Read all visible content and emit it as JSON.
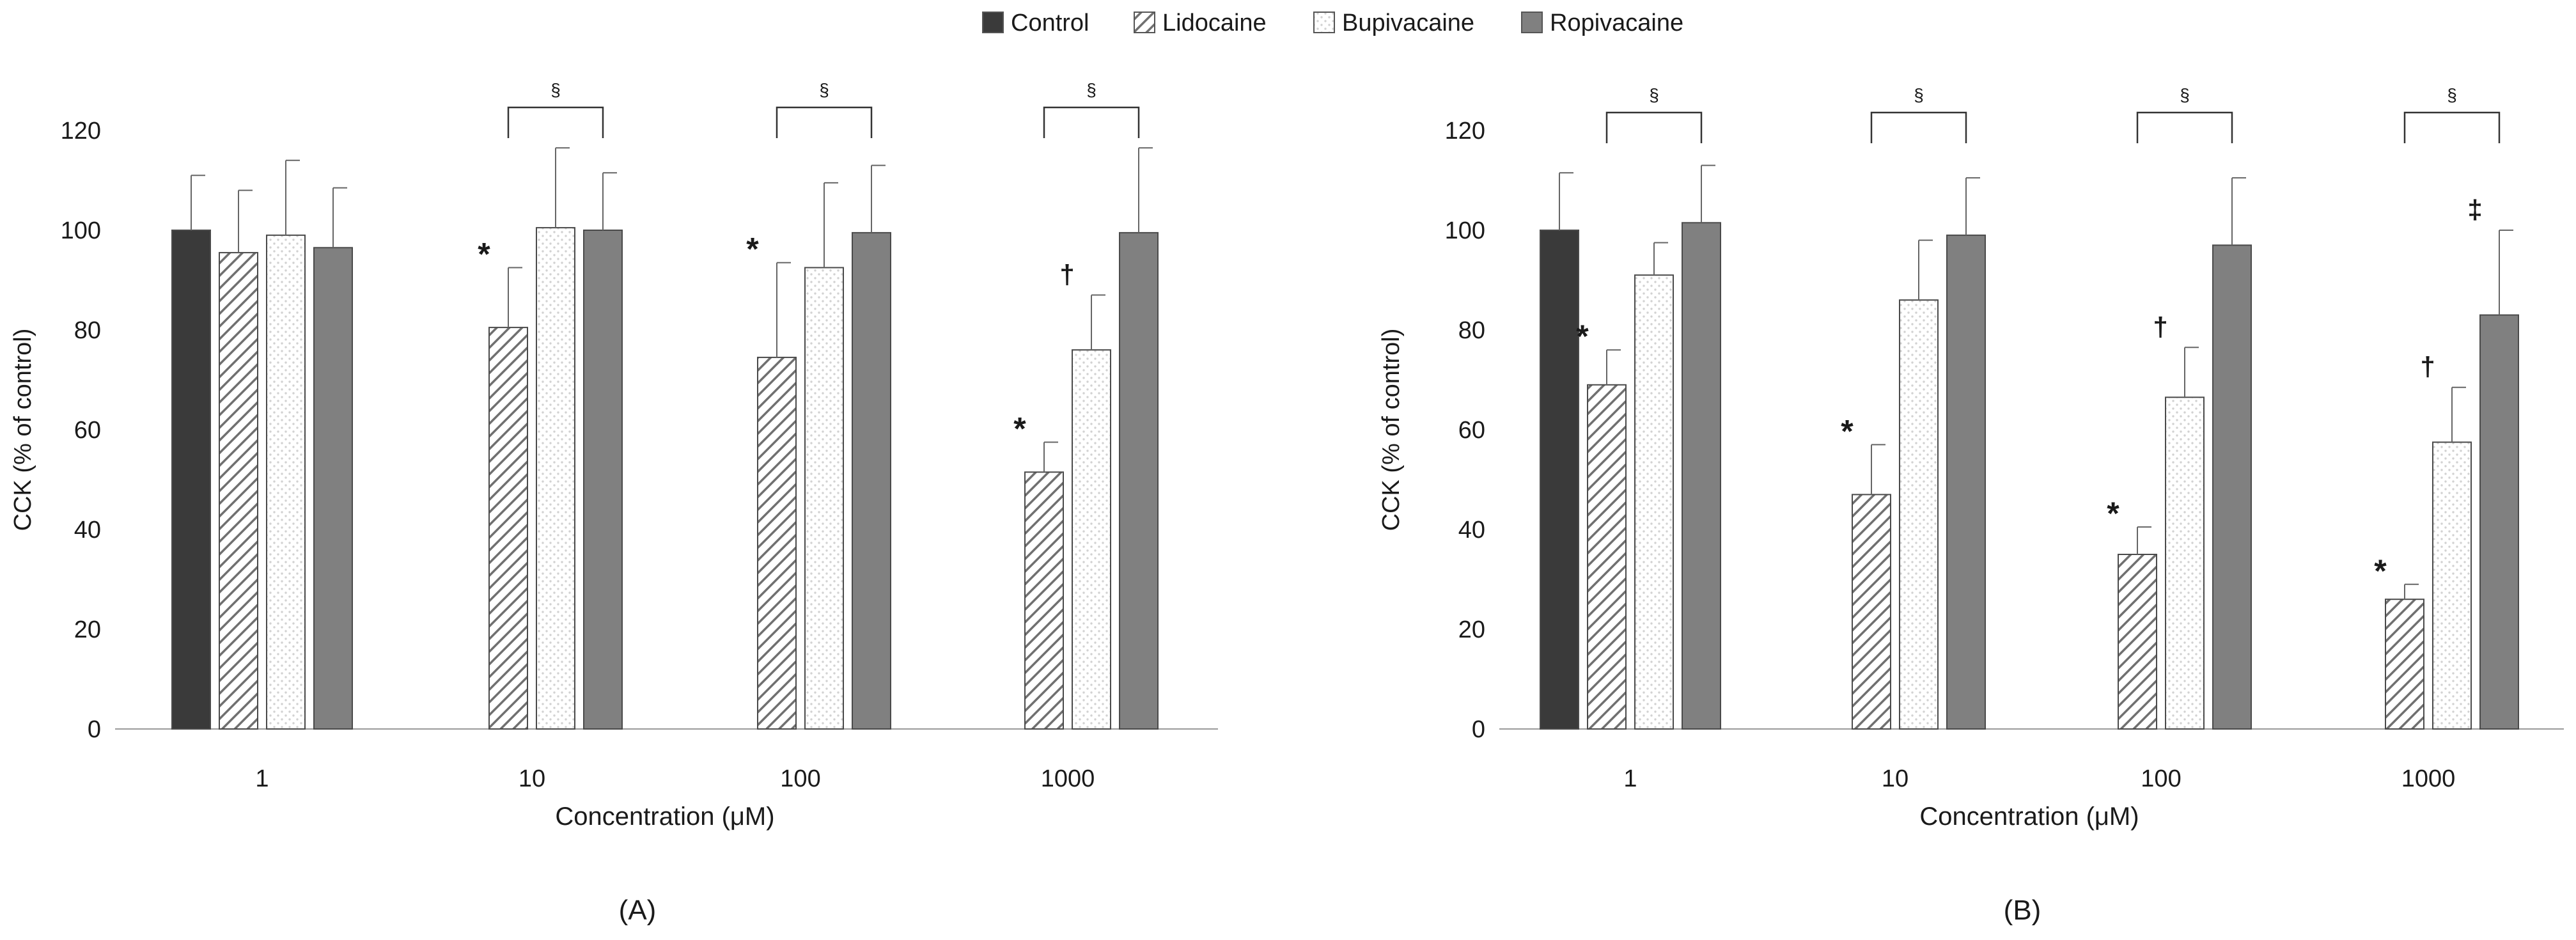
{
  "legend": {
    "items": [
      {
        "name": "Control",
        "color": "#3a3a3a",
        "pattern": "solid"
      },
      {
        "name": "Lidocaine",
        "color": "#9a9a9a",
        "pattern": "hatch"
      },
      {
        "name": "Bupivacaine",
        "color": "#ffffff",
        "pattern": "dots"
      },
      {
        "name": "Ropivacaine",
        "color": "#808080",
        "pattern": "solid"
      }
    ]
  },
  "chart_data": [
    {
      "type": "bar",
      "panel_label": "(A)",
      "xlabel": "Concentration (μM)",
      "ylabel": "CCK (% of control)",
      "ylim": [
        0,
        120
      ],
      "yticks": [
        0,
        20,
        40,
        60,
        80,
        100,
        120
      ],
      "categories": [
        "1",
        "10",
        "100",
        "1000"
      ],
      "series": [
        {
          "name": "Control",
          "values": [
            100,
            null,
            null,
            null
          ],
          "errors": [
            11,
            null,
            null,
            null
          ]
        },
        {
          "name": "Lidocaine",
          "values": [
            95.5,
            80.5,
            74.5,
            51.5
          ],
          "errors": [
            12.5,
            12,
            19,
            6
          ]
        },
        {
          "name": "Bupivacaine",
          "values": [
            99,
            100.5,
            92.5,
            76
          ],
          "errors": [
            15,
            16,
            17,
            11
          ]
        },
        {
          "name": "Ropivacaine",
          "values": [
            96.5,
            100,
            99.5,
            99.5
          ],
          "errors": [
            12,
            11.5,
            13.5,
            17
          ]
        }
      ],
      "annotations": [
        {
          "category": "10",
          "series": "Lidocaine",
          "text": "*"
        },
        {
          "category": "100",
          "series": "Lidocaine",
          "text": "*"
        },
        {
          "category": "1000",
          "series": "Lidocaine",
          "text": "*"
        },
        {
          "category": "1000",
          "series": "Bupivacaine",
          "text": "†"
        }
      ],
      "brackets": [
        {
          "category": "10",
          "from": "Lidocaine",
          "to": "Ropivacaine",
          "text": "§"
        },
        {
          "category": "100",
          "from": "Lidocaine",
          "to": "Ropivacaine",
          "text": "§"
        },
        {
          "category": "1000",
          "from": "Lidocaine",
          "to": "Ropivacaine",
          "text": "§"
        }
      ]
    },
    {
      "type": "bar",
      "panel_label": "(B)",
      "xlabel": "Concentration (μM)",
      "ylabel": "CCK (% of control)",
      "ylim": [
        0,
        120
      ],
      "yticks": [
        0,
        20,
        40,
        60,
        80,
        100,
        120
      ],
      "categories": [
        "1",
        "10",
        "100",
        "1000"
      ],
      "series": [
        {
          "name": "Control",
          "values": [
            100,
            null,
            null,
            null
          ],
          "errors": [
            11.5,
            null,
            null,
            null
          ]
        },
        {
          "name": "Lidocaine",
          "values": [
            69,
            47,
            35,
            26
          ],
          "errors": [
            7,
            10,
            5.5,
            3
          ]
        },
        {
          "name": "Bupivacaine",
          "values": [
            91,
            86,
            66.5,
            57.5
          ],
          "errors": [
            6.5,
            12,
            10,
            11
          ]
        },
        {
          "name": "Ropivacaine",
          "values": [
            101.5,
            99,
            97,
            83
          ],
          "errors": [
            11.5,
            11.5,
            13.5,
            17
          ]
        }
      ],
      "annotations": [
        {
          "category": "1",
          "series": "Lidocaine",
          "text": "*"
        },
        {
          "category": "10",
          "series": "Lidocaine",
          "text": "*"
        },
        {
          "category": "100",
          "series": "Lidocaine",
          "text": "*"
        },
        {
          "category": "1000",
          "series": "Lidocaine",
          "text": "*"
        },
        {
          "category": "100",
          "series": "Bupivacaine",
          "text": "†"
        },
        {
          "category": "1000",
          "series": "Bupivacaine",
          "text": "†"
        },
        {
          "category": "1000",
          "series": "Ropivacaine",
          "text": "‡"
        }
      ],
      "brackets": [
        {
          "category": "1",
          "from": "Lidocaine",
          "to": "Ropivacaine",
          "text": "§"
        },
        {
          "category": "10",
          "from": "Lidocaine",
          "to": "Ropivacaine",
          "text": "§"
        },
        {
          "category": "100",
          "from": "Lidocaine",
          "to": "Ropivacaine",
          "text": "§"
        },
        {
          "category": "1000",
          "from": "Lidocaine",
          "to": "Ropivacaine",
          "text": "§"
        }
      ]
    }
  ]
}
